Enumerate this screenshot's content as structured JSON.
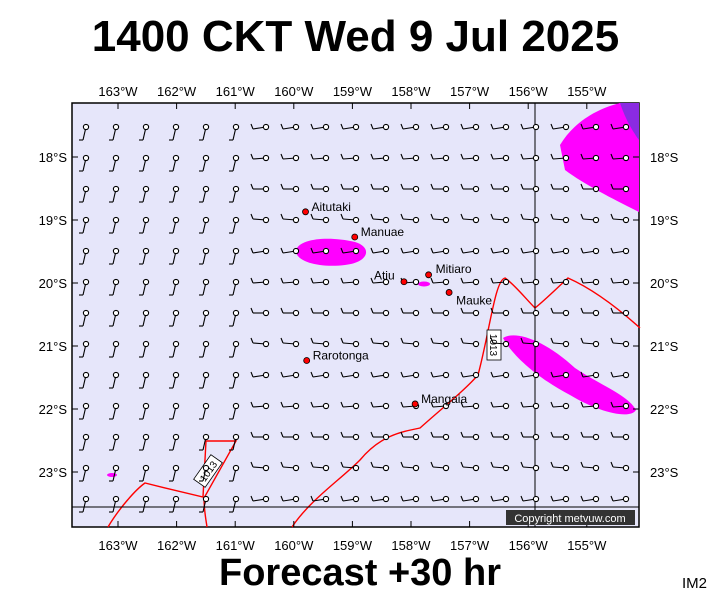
{
  "title": "1400 CKT Wed 9 Jul 2025",
  "footer": "Forecast +30 hr",
  "code": "IM2",
  "copyright": "Copyright metvuw.com",
  "lon_labels": [
    "163°W",
    "162°W",
    "161°W",
    "160°W",
    "159°W",
    "158°W",
    "157°W",
    "156°W",
    "155°W"
  ],
  "lon_values": [
    -163,
    -162,
    -161,
    -160,
    -159,
    -158,
    -157,
    -156,
    -155
  ],
  "lat_labels": [
    "18°S",
    "19°S",
    "20°S",
    "21°S",
    "22°S",
    "23°S"
  ],
  "lat_values": [
    -18,
    -19,
    -20,
    -21,
    -22,
    -23
  ],
  "isobar_labels": [
    "1013",
    "1013"
  ],
  "places": [
    {
      "name": "Aitutaki",
      "lon": -159.8,
      "lat": -18.87
    },
    {
      "name": "Manuae",
      "lon": -158.96,
      "lat": -19.27
    },
    {
      "name": "Mitiaro",
      "lon": -157.7,
      "lat": -19.87
    },
    {
      "name": "Atiu",
      "lon": -158.12,
      "lat": -19.98
    },
    {
      "name": "Mauke",
      "lon": -157.35,
      "lat": -20.15
    },
    {
      "name": "Rarotonga",
      "lon": -159.78,
      "lat": -21.23
    },
    {
      "name": "Mangaia",
      "lon": -157.93,
      "lat": -21.92
    }
  ],
  "colors": {
    "sea": "#e6e6fa",
    "rain": "#ff00ff",
    "heavy_rain": "#8a2be2",
    "isobar": "#ff0000",
    "place": "#ff0000"
  }
}
